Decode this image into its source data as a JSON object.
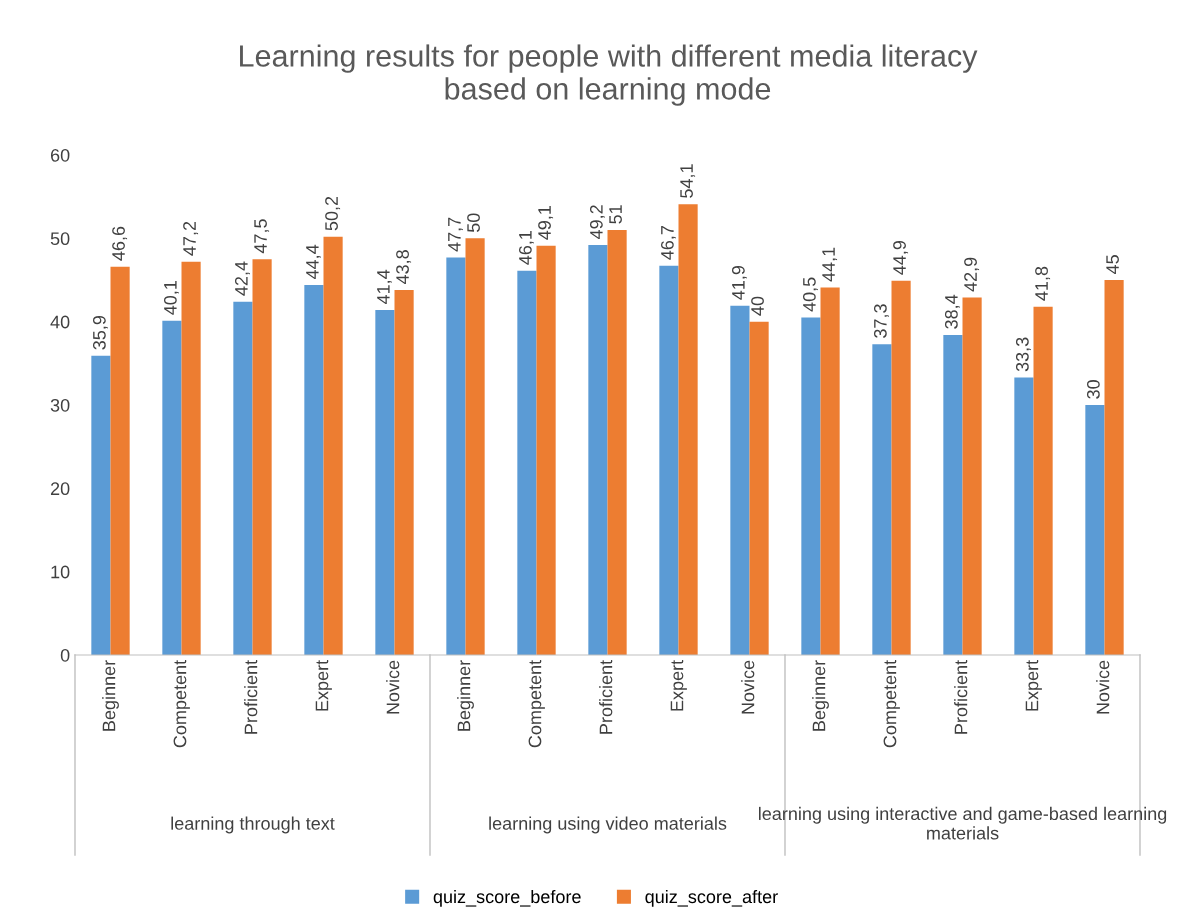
{
  "chart_data": {
    "type": "bar",
    "title": "Learning results for people with different media literacy\nbased on learning mode",
    "categories": [
      "Beginner",
      "Competent",
      "Proficient",
      "Expert",
      "Novice",
      "Beginner",
      "Competent",
      "Proficient",
      "Expert",
      "Novice",
      "Beginner",
      "Competent",
      "Proficient",
      "Expert",
      "Novice"
    ],
    "series": [
      {
        "name": "quiz_score_before",
        "color": "#5b9bd5",
        "values": [
          35.9,
          40.1,
          42.4,
          44.4,
          41.4,
          47.7,
          46.1,
          49.2,
          46.7,
          41.9,
          40.5,
          37.3,
          38.4,
          33.3,
          30
        ],
        "value_labels": [
          "35,9",
          "40,1",
          "42,4",
          "44,4",
          "41,4",
          "47,7",
          "46,1",
          "49,2",
          "46,7",
          "41,9",
          "40,5",
          "37,3",
          "38,4",
          "33,3",
          "30"
        ]
      },
      {
        "name": "quiz_score_after",
        "color": "#ed7d31",
        "values": [
          46.6,
          47.2,
          47.5,
          50.2,
          43.8,
          50,
          49.1,
          51,
          54.1,
          40,
          44.1,
          44.9,
          42.9,
          41.8,
          45
        ],
        "value_labels": [
          "46,6",
          "47,2",
          "47,5",
          "50,2",
          "43,8",
          "50",
          "49,1",
          "51",
          "54,1",
          "40",
          "44,1",
          "44,9",
          "42,9",
          "41,8",
          "45"
        ]
      }
    ],
    "annotations": [
      "learning through text",
      "learning using video materials",
      "learning using interactive and game-based learning materials"
    ],
    "ylim": [
      0,
      60
    ],
    "yticks": [
      0,
      10,
      20,
      30,
      40,
      50,
      60
    ],
    "grid": false,
    "legend": "bottom"
  }
}
